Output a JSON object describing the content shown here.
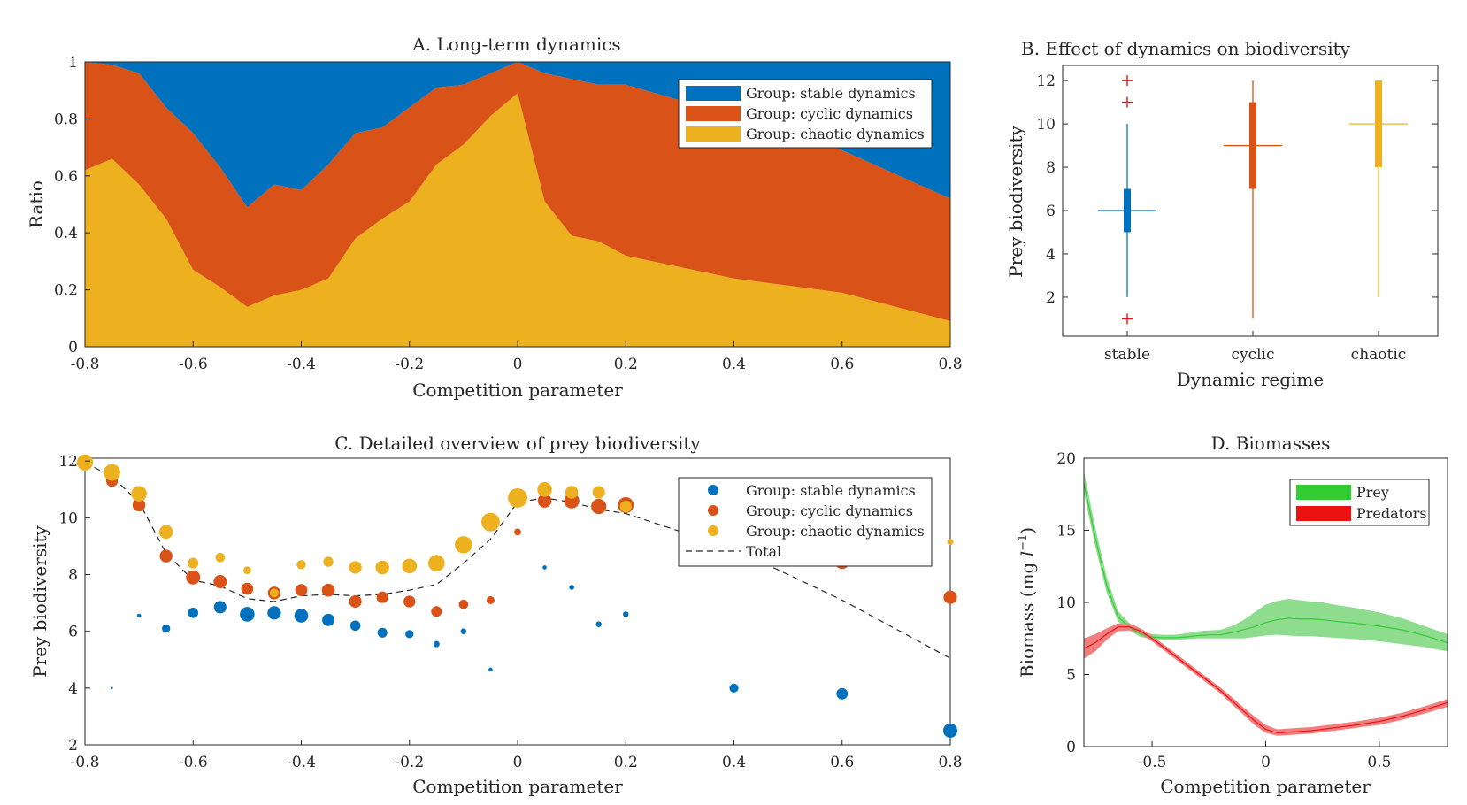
{
  "colors": {
    "stable": "#0072BD",
    "cyclic": "#D95319",
    "chaotic": "#EDB120",
    "prey": "#33CC33",
    "predators": "#EE1111",
    "outlier": "#EE1111"
  },
  "chart_data": [
    {
      "id": "A",
      "type": "area",
      "title": "A. Long-term dynamics",
      "xlabel": "Competition parameter",
      "ylabel": "Ratio",
      "xlim": [
        -0.8,
        0.8
      ],
      "ylim": [
        0,
        1
      ],
      "xticks": [
        "-0.8",
        "-0.6",
        "-0.4",
        "-0.2",
        "0",
        "0.2",
        "0.4",
        "0.6",
        "0.8"
      ],
      "yticks": [
        "0",
        "0.2",
        "0.4",
        "0.6",
        "0.8",
        "1"
      ],
      "legend_position": "top-right",
      "x": [
        -0.8,
        -0.75,
        -0.7,
        -0.65,
        -0.6,
        -0.55,
        -0.5,
        -0.45,
        -0.4,
        -0.35,
        -0.3,
        -0.25,
        -0.2,
        -0.15,
        -0.1,
        -0.05,
        0,
        0.05,
        0.1,
        0.15,
        0.2,
        0.4,
        0.6,
        0.8
      ],
      "series": [
        {
          "name": "Group:  stable dynamics",
          "key": "stable",
          "values": [
            0,
            0.01,
            0.04,
            0.16,
            0.25,
            0.37,
            0.51,
            0.43,
            0.45,
            0.36,
            0.25,
            0.23,
            0.16,
            0.09,
            0.08,
            0.04,
            0,
            0.04,
            0.06,
            0.08,
            0.08,
            0.19,
            0.31,
            0.48
          ]
        },
        {
          "name": "Group:  cyclic dynamics",
          "key": "cyclic",
          "values": [
            0.38,
            0.33,
            0.39,
            0.39,
            0.48,
            0.42,
            0.35,
            0.39,
            0.35,
            0.4,
            0.37,
            0.32,
            0.33,
            0.27,
            0.21,
            0.15,
            0.11,
            0.45,
            0.55,
            0.55,
            0.6,
            0.57,
            0.5,
            0.43
          ]
        },
        {
          "name": "Group:  chaotic dynamics",
          "key": "chaotic",
          "values": [
            0.62,
            0.66,
            0.57,
            0.45,
            0.27,
            0.21,
            0.14,
            0.18,
            0.2,
            0.24,
            0.38,
            0.45,
            0.51,
            0.64,
            0.71,
            0.81,
            0.89,
            0.51,
            0.39,
            0.37,
            0.32,
            0.24,
            0.19,
            0.09
          ]
        }
      ]
    },
    {
      "id": "B",
      "type": "box",
      "title": "B. Effect of dynamics on biodiversity",
      "xlabel": "Dynamic regime",
      "ylabel": "Prey biodiversity",
      "ylim": [
        0.2,
        12.7
      ],
      "yticks": [
        "2",
        "4",
        "6",
        "8",
        "10",
        "12"
      ],
      "categories": [
        "stable",
        "cyclic",
        "chaotic"
      ],
      "boxes": [
        {
          "category": "stable",
          "key": "stable",
          "q1": 5,
          "median": 6,
          "q3": 7,
          "whisker_low": 2,
          "whisker_high": 10,
          "outliers": [
            1,
            11,
            12
          ]
        },
        {
          "category": "cyclic",
          "key": "cyclic",
          "q1": 7,
          "median": 9,
          "q3": 11,
          "whisker_low": 1,
          "whisker_high": 12,
          "outliers": []
        },
        {
          "category": "chaotic",
          "key": "chaotic",
          "q1": 8,
          "median": 10,
          "q3": 12,
          "whisker_low": 2,
          "whisker_high": 12,
          "outliers": []
        }
      ]
    },
    {
      "id": "C",
      "type": "scatter",
      "title": "C. Detailed overview of prey biodiversity",
      "xlabel": "Competition parameter",
      "ylabel": "Prey biodiversity",
      "xlim": [
        -0.8,
        0.8
      ],
      "ylim": [
        2,
        12.1
      ],
      "xticks": [
        "-0.8",
        "-0.6",
        "-0.4",
        "-0.2",
        "0",
        "0.2",
        "0.4",
        "0.6",
        "0.8"
      ],
      "yticks": [
        "2",
        "4",
        "6",
        "8",
        "10",
        "12"
      ],
      "legend_position": "top-right",
      "note": "marker area reflects the share of runs in each group",
      "x": [
        -0.8,
        -0.75,
        -0.7,
        -0.65,
        -0.6,
        -0.55,
        -0.5,
        -0.45,
        -0.4,
        -0.35,
        -0.3,
        -0.25,
        -0.2,
        -0.15,
        -0.1,
        -0.05,
        0,
        0.05,
        0.1,
        0.15,
        0.2,
        0.4,
        0.6,
        0.8
      ],
      "series": [
        {
          "name": "Group:  stable dynamics",
          "key": "stable",
          "marker": "dot",
          "y": [
            null,
            4.0,
            6.55,
            6.1,
            6.65,
            6.85,
            6.6,
            6.65,
            6.55,
            6.4,
            6.2,
            5.95,
            5.9,
            5.55,
            6.0,
            4.65,
            null,
            8.25,
            7.55,
            6.25,
            6.6,
            4.0,
            3.8,
            2.5
          ],
          "share": [
            0,
            0.01,
            0.04,
            0.16,
            0.25,
            0.37,
            0.51,
            0.43,
            0.45,
            0.36,
            0.25,
            0.23,
            0.16,
            0.09,
            0.08,
            0.04,
            0,
            0.04,
            0.06,
            0.08,
            0.08,
            0.19,
            0.31,
            0.48
          ]
        },
        {
          "name": "Group:  cyclic dynamics",
          "key": "cyclic",
          "marker": "dot",
          "y": [
            11.95,
            11.3,
            10.45,
            8.65,
            7.9,
            7.75,
            7.5,
            7.35,
            7.45,
            7.45,
            7.05,
            7.2,
            7.05,
            6.7,
            6.95,
            7.1,
            9.5,
            10.6,
            10.6,
            10.4,
            10.45,
            null,
            8.45,
            7.2
          ],
          "share": [
            0.38,
            0.33,
            0.39,
            0.39,
            0.48,
            0.42,
            0.35,
            0.39,
            0.35,
            0.4,
            0.37,
            0.32,
            0.33,
            0.27,
            0.21,
            0.15,
            0.11,
            0.45,
            0.55,
            0.55,
            0.6,
            0.57,
            0.5,
            0.43
          ]
        },
        {
          "name": "Group:  chaotic dynamics",
          "key": "chaotic",
          "marker": "dot",
          "y": [
            11.95,
            11.6,
            10.85,
            9.5,
            8.4,
            8.6,
            8.15,
            7.35,
            8.35,
            8.45,
            8.25,
            8.25,
            8.3,
            8.4,
            9.05,
            9.85,
            10.7,
            11.0,
            10.9,
            10.9,
            10.4,
            null,
            null,
            9.15
          ],
          "share": [
            0.62,
            0.66,
            0.57,
            0.45,
            0.27,
            0.21,
            0.14,
            0.18,
            0.2,
            0.24,
            0.38,
            0.45,
            0.51,
            0.64,
            0.71,
            0.81,
            0.89,
            0.51,
            0.39,
            0.37,
            0.32,
            0.24,
            0.19,
            0.09
          ]
        },
        {
          "name": "Total",
          "key": "total",
          "marker": "dashed-line",
          "y": [
            11.95,
            11.45,
            10.55,
            8.75,
            7.8,
            7.6,
            7.15,
            7.05,
            7.25,
            7.3,
            7.25,
            7.3,
            7.45,
            7.65,
            8.4,
            9.25,
            10.55,
            10.7,
            10.55,
            10.3,
            10.15,
            8.9,
            7.1,
            5.05
          ]
        }
      ]
    },
    {
      "id": "D",
      "type": "line",
      "title": "D. Biomasses",
      "xlabel": "Competition parameter",
      "ylabel": "Biomass (mg $l^{-1}$)",
      "ylabel_main": "Biomass (mg ",
      "ylabel_sym": "l",
      "ylabel_sup": "−1",
      "ylabel_close": ")",
      "xlim": [
        -0.8,
        0.8
      ],
      "ylim": [
        0,
        20
      ],
      "xticks": [
        "-0.5",
        "0",
        "0.5"
      ],
      "xtick_values": [
        -0.5,
        0,
        0.5
      ],
      "yticks": [
        "0",
        "5",
        "10",
        "15",
        "20"
      ],
      "legend_position": "top-right",
      "x": [
        -0.8,
        -0.75,
        -0.7,
        -0.65,
        -0.6,
        -0.55,
        -0.5,
        -0.45,
        -0.4,
        -0.35,
        -0.3,
        -0.25,
        -0.2,
        -0.15,
        -0.1,
        -0.05,
        0,
        0.05,
        0.1,
        0.15,
        0.2,
        0.25,
        0.3,
        0.4,
        0.5,
        0.6,
        0.7,
        0.8
      ],
      "series": [
        {
          "name": "Prey",
          "key": "prey",
          "mean": [
            18.3,
            14.5,
            11.2,
            9.0,
            8.3,
            7.8,
            7.6,
            7.55,
            7.55,
            7.6,
            7.7,
            7.75,
            7.75,
            7.9,
            8.1,
            8.3,
            8.6,
            8.8,
            8.9,
            8.85,
            8.85,
            8.8,
            8.7,
            8.55,
            8.35,
            8.1,
            7.7,
            7.2
          ],
          "lower": [
            17.6,
            13.9,
            10.7,
            8.7,
            8.05,
            7.6,
            7.45,
            7.4,
            7.4,
            7.45,
            7.5,
            7.5,
            7.5,
            7.5,
            7.5,
            7.6,
            7.7,
            7.75,
            7.7,
            7.65,
            7.65,
            7.6,
            7.55,
            7.45,
            7.3,
            7.1,
            6.9,
            6.6
          ],
          "upper": [
            19.1,
            15.2,
            11.8,
            9.4,
            8.55,
            8.0,
            7.8,
            7.75,
            7.75,
            7.85,
            8.0,
            8.05,
            8.1,
            8.35,
            8.75,
            9.3,
            9.85,
            10.1,
            10.25,
            10.15,
            10.05,
            10.0,
            9.85,
            9.6,
            9.3,
            8.9,
            8.35,
            7.8
          ]
        },
        {
          "name": "Predators",
          "key": "predators",
          "mean": [
            6.8,
            7.2,
            7.8,
            8.3,
            8.3,
            8.0,
            7.5,
            6.9,
            6.3,
            5.7,
            5.1,
            4.5,
            3.9,
            3.2,
            2.5,
            1.8,
            1.2,
            0.95,
            1.0,
            1.05,
            1.1,
            1.2,
            1.3,
            1.5,
            1.75,
            2.1,
            2.55,
            3.05
          ],
          "lower": [
            6.1,
            6.6,
            7.4,
            8.0,
            8.05,
            7.8,
            7.3,
            6.7,
            6.1,
            5.5,
            4.9,
            4.3,
            3.7,
            2.95,
            2.25,
            1.5,
            0.95,
            0.75,
            0.8,
            0.85,
            0.9,
            1.0,
            1.1,
            1.3,
            1.5,
            1.85,
            2.3,
            2.75
          ],
          "upper": [
            7.5,
            7.8,
            8.2,
            8.55,
            8.55,
            8.2,
            7.7,
            7.1,
            6.5,
            5.9,
            5.3,
            4.7,
            4.1,
            3.45,
            2.75,
            2.1,
            1.5,
            1.2,
            1.25,
            1.3,
            1.35,
            1.45,
            1.55,
            1.75,
            2.0,
            2.35,
            2.8,
            3.3
          ]
        }
      ]
    }
  ]
}
